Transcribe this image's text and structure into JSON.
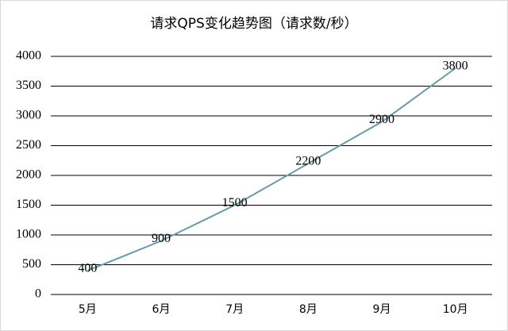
{
  "chart_data": {
    "type": "line",
    "title": "请求QPS变化趋势图（请求数/秒）",
    "categories": [
      "5月",
      "6月",
      "7月",
      "8月",
      "9月",
      "10月"
    ],
    "values": [
      400,
      900,
      1500,
      2200,
      2900,
      3800
    ],
    "color": "#6a9aa6",
    "ylim": [
      0,
      4000
    ],
    "yticks": [
      0,
      500,
      1000,
      1500,
      2000,
      2500,
      3000,
      3500,
      4000
    ],
    "grid": true,
    "data_labels": true
  }
}
